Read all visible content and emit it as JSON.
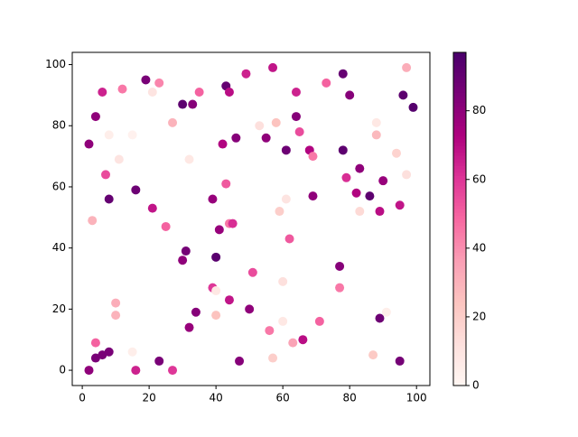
{
  "chart_data": {
    "type": "scatter",
    "x": [
      2,
      4,
      6,
      8,
      4,
      16,
      23,
      27,
      15,
      10,
      10,
      2,
      4,
      6,
      8,
      7,
      8,
      3,
      11,
      12,
      15,
      19,
      23,
      21,
      27,
      30,
      33,
      35,
      32,
      16,
      21,
      25,
      31,
      30,
      40,
      41,
      44,
      45,
      39,
      43,
      42,
      46,
      43,
      44,
      49,
      57,
      53,
      58,
      55,
      61,
      64,
      64,
      65,
      61,
      59,
      62,
      51,
      39,
      40,
      40,
      44,
      34,
      32,
      50,
      47,
      56,
      57,
      60,
      60,
      63,
      66,
      71,
      68,
      69,
      69,
      73,
      78,
      80,
      78,
      79,
      83,
      82,
      86,
      83,
      88,
      88,
      90,
      89,
      94,
      97,
      96,
      99,
      97,
      95,
      77,
      77,
      89,
      91,
      87,
      95
    ],
    "y": [
      0,
      4,
      5,
      6,
      9,
      0,
      3,
      0,
      6,
      18,
      22,
      74,
      83,
      91,
      77,
      64,
      56,
      49,
      69,
      92,
      77,
      95,
      94,
      91,
      81,
      87,
      87,
      91,
      69,
      59,
      53,
      47,
      39,
      36,
      37,
      46,
      48,
      48,
      56,
      61,
      74,
      76,
      93,
      91,
      97,
      99,
      80,
      81,
      76,
      72,
      83,
      91,
      78,
      56,
      52,
      43,
      32,
      27,
      26,
      18,
      23,
      19,
      14,
      20,
      3,
      13,
      4,
      29,
      16,
      9,
      10,
      16,
      72,
      70,
      57,
      94,
      97,
      90,
      72,
      63,
      66,
      58,
      57,
      52,
      81,
      77,
      62,
      52,
      71,
      99,
      90,
      86,
      64,
      54,
      34,
      27,
      17,
      19,
      5,
      3
    ],
    "c": [
      80,
      85,
      85,
      85,
      50,
      65,
      85,
      60,
      5,
      30,
      32,
      80,
      80,
      65,
      5,
      55,
      90,
      30,
      10,
      45,
      3,
      85,
      42,
      10,
      30,
      92,
      82,
      50,
      8,
      88,
      68,
      50,
      86,
      80,
      93,
      78,
      45,
      62,
      78,
      52,
      72,
      82,
      90,
      70,
      65,
      68,
      12,
      25,
      80,
      88,
      82,
      65,
      55,
      10,
      20,
      52,
      55,
      60,
      8,
      25,
      68,
      82,
      78,
      80,
      82,
      45,
      20,
      12,
      8,
      35,
      70,
      50,
      72,
      45,
      80,
      50,
      90,
      82,
      92,
      62,
      80,
      72,
      92,
      15,
      8,
      28,
      78,
      70,
      18,
      32,
      92,
      94,
      12,
      68,
      82,
      45,
      88,
      5,
      22,
      86
    ],
    "colormap": "RdPu",
    "clim": [
      0,
      97
    ],
    "cticks": [
      0,
      20,
      40,
      60,
      80
    ],
    "xlim": [
      -3,
      104
    ],
    "xticks": [
      0,
      20,
      40,
      60,
      80,
      100
    ],
    "ylim": [
      -5,
      104
    ],
    "yticks": [
      0,
      20,
      40,
      60,
      80,
      100
    ]
  }
}
